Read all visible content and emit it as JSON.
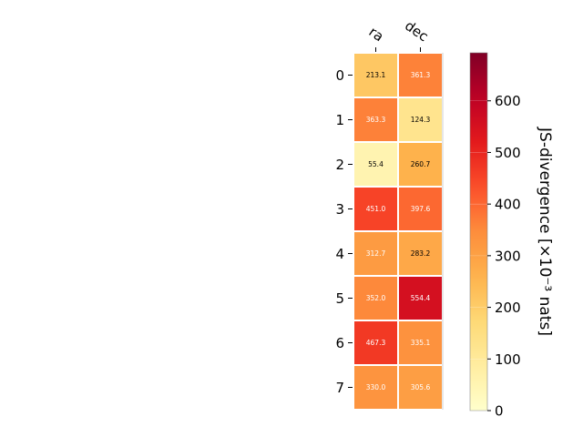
{
  "chart_data": {
    "type": "heatmap",
    "columns": [
      "ra",
      "dec"
    ],
    "rows": [
      "0",
      "1",
      "2",
      "3",
      "4",
      "5",
      "6",
      "7"
    ],
    "values": [
      [
        213.1,
        361.3
      ],
      [
        363.3,
        124.3
      ],
      [
        55.4,
        260.7
      ],
      [
        451.0,
        397.6
      ],
      [
        312.7,
        283.2
      ],
      [
        352.0,
        554.4
      ],
      [
        467.3,
        335.1
      ],
      [
        330.0,
        305.6
      ]
    ],
    "value_format": "1 decimal",
    "colormap": "YlOrRd",
    "colorbar": {
      "label": "JS-divergence [×10⁻³ nats]",
      "range": [
        0,
        693
      ],
      "ticks": [
        0,
        100,
        200,
        300,
        400,
        500,
        600
      ]
    },
    "text_color_dark": "#000000",
    "text_color_light": "#ffffff"
  }
}
